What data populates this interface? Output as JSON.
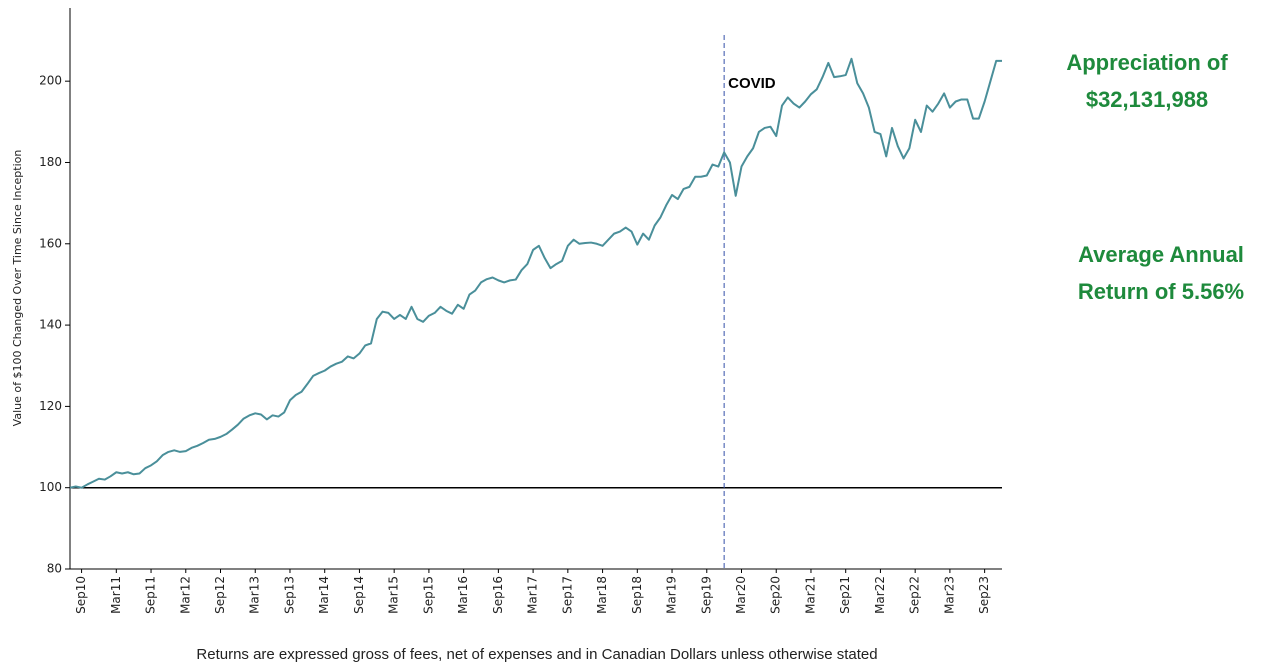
{
  "chart_data": {
    "type": "line",
    "y_label": "Value of $100 Changed Over Time Since Inception",
    "footnote": "Returns are expressed gross of fees, net of expenses and in Canadian Dollars unless otherwise stated",
    "categories": [
      null,
      null,
      "Sep10",
      null,
      null,
      null,
      null,
      null,
      "Mar11",
      null,
      null,
      null,
      null,
      null,
      "Sep11",
      null,
      null,
      null,
      null,
      null,
      "Mar12",
      null,
      null,
      null,
      null,
      null,
      "Sep12",
      null,
      null,
      null,
      null,
      null,
      "Mar13",
      null,
      null,
      null,
      null,
      null,
      "Sep13",
      null,
      null,
      null,
      null,
      null,
      "Mar14",
      null,
      null,
      null,
      null,
      null,
      "Sep14",
      null,
      null,
      null,
      null,
      null,
      "Mar15",
      null,
      null,
      null,
      null,
      null,
      "Sep15",
      null,
      null,
      null,
      null,
      null,
      "Mar16",
      null,
      null,
      null,
      null,
      null,
      "Sep16",
      null,
      null,
      null,
      null,
      null,
      "Mar17",
      null,
      null,
      null,
      null,
      null,
      "Sep17",
      null,
      null,
      null,
      null,
      null,
      "Mar18",
      null,
      null,
      null,
      null,
      null,
      "Sep18",
      null,
      null,
      null,
      null,
      null,
      "Mar19",
      null,
      null,
      null,
      null,
      null,
      "Sep19",
      null,
      null,
      null,
      null,
      null,
      "Mar20",
      null,
      null,
      null,
      null,
      null,
      "Sep20",
      null,
      null,
      null,
      null,
      null,
      "Mar21",
      null,
      null,
      null,
      null,
      null,
      "Sep21",
      null,
      null,
      null,
      null,
      null,
      "Mar22",
      null,
      null,
      null,
      null,
      null,
      "Sep22",
      null,
      null,
      null,
      null,
      null,
      "Mar23",
      null,
      null,
      null,
      null,
      null,
      "Sep23",
      null,
      null,
      null
    ],
    "values": [
      100,
      100.3,
      100,
      100.8,
      101.5,
      102.2,
      102,
      102.8,
      103.8,
      103.5,
      103.8,
      103.3,
      103.5,
      104.8,
      105.5,
      106.5,
      108,
      108.8,
      109.2,
      108.8,
      109,
      109.8,
      110.3,
      111,
      111.8,
      112,
      112.5,
      113.2,
      114.3,
      115.5,
      117,
      117.8,
      118.3,
      118,
      116.8,
      117.8,
      117.5,
      118.5,
      121.5,
      122.8,
      123.6,
      125.5,
      127.5,
      128.2,
      128.8,
      129.8,
      130.5,
      131,
      132.3,
      131.8,
      133,
      135,
      135.5,
      141.5,
      143.3,
      143,
      141.5,
      142.5,
      141.5,
      144.5,
      141.5,
      140.8,
      142.3,
      143,
      144.5,
      143.5,
      142.8,
      145,
      144,
      147.5,
      148.5,
      150.5,
      151.3,
      151.7,
      151,
      150.5,
      151,
      151.2,
      153.5,
      155,
      158.5,
      159.5,
      156.5,
      154,
      155,
      155.8,
      159.5,
      161,
      160,
      160.2,
      160.3,
      160,
      159.5,
      161,
      162.5,
      163,
      164,
      163,
      159.8,
      162.5,
      161,
      164.5,
      166.5,
      169.5,
      172,
      171,
      173.5,
      174,
      176.5,
      176.5,
      176.8,
      179.5,
      179,
      182.5,
      180,
      171.8,
      179,
      181.5,
      183.5,
      187.5,
      188.5,
      188.8,
      186.5,
      194,
      196,
      194.5,
      193.5,
      195,
      196.8,
      198,
      201,
      204.5,
      201,
      201.2,
      201.5,
      205.5,
      199.5,
      197,
      193.5,
      187.5,
      187,
      181.5,
      188.5,
      184,
      181,
      183.5,
      190.5,
      187.5,
      194,
      192.5,
      194.5,
      197,
      193.5,
      195,
      195.5,
      195.5,
      190.8,
      190.8,
      195,
      200,
      205,
      205
    ],
    "color": "#4a8f9a",
    "ylim": [
      80,
      218
    ],
    "yticks": [
      80,
      100,
      120,
      140,
      160,
      180,
      200
    ],
    "reference_line": 100,
    "annotations": [
      {
        "text": "COVID",
        "x_index": 113
      }
    ],
    "side_notes": [
      [
        "Appreciation of",
        "$32,131,988"
      ],
      [
        "Average Annual",
        "Return of 5.56%"
      ]
    ]
  }
}
